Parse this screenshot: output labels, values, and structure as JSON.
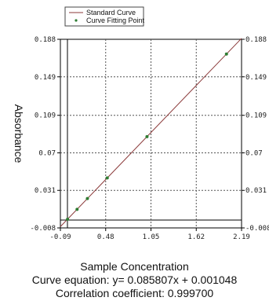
{
  "chart_data": {
    "type": "line",
    "title": "",
    "xlabel": "Sample Concentration",
    "ylabel": "Absorbance",
    "xlim": [
      -0.09,
      2.19
    ],
    "ylim": [
      -0.008,
      0.188
    ],
    "x_ticks": [
      "-0.09",
      "0.48",
      "1.05",
      "1.62",
      "2.19"
    ],
    "y_ticks": [
      "-0.008",
      "0.031",
      "0.07",
      "0.109",
      "0.149",
      "0.188"
    ],
    "grid": true,
    "legend_position": "top",
    "series": [
      {
        "name": "Standard Curve",
        "kind": "line",
        "color": "#8b3a3a",
        "x": [
          -0.09,
          2.19
        ],
        "y": [
          -0.00667,
          0.18897
        ]
      },
      {
        "name": "Curve Fitting Point",
        "kind": "scatter",
        "color": "#2e7d32",
        "x": [
          0.0,
          0.12,
          0.25,
          0.5,
          1.0,
          2.0
        ],
        "y": [
          0.001,
          0.0113,
          0.0225,
          0.044,
          0.0868,
          0.1727
        ]
      }
    ]
  },
  "equation_line": "Curve equation: y= 0.085807x + 0.001048",
  "correlation_line": "Correlation coefficient: 0.999700"
}
